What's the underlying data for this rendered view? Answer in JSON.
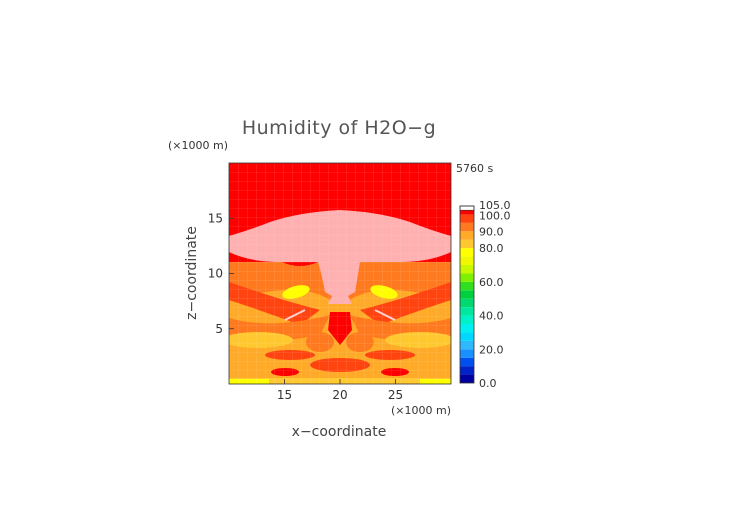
{
  "chart_data": {
    "type": "heatmap",
    "title": "Humidity of H2O−g",
    "xlabel": "x−coordinate",
    "ylabel": "z−coordinate",
    "x_unit": "(×1000 m)",
    "y_unit": "(×1000 m)",
    "time_label": "5760 s",
    "xlim": [
      10,
      30
    ],
    "ylim": [
      0,
      20
    ],
    "x_ticks": [
      15,
      20,
      25
    ],
    "y_ticks": [
      5,
      10,
      15
    ],
    "colorbar": {
      "ticks": [
        "0.0",
        "20.0",
        "40.0",
        "60.0",
        "80.0",
        "90.0",
        "100.0",
        "105.0"
      ],
      "levels": [
        {
          "low": 0,
          "high": 5,
          "color": "#0000a0"
        },
        {
          "low": 5,
          "high": 10,
          "color": "#0022c8"
        },
        {
          "low": 10,
          "high": 15,
          "color": "#0050f0"
        },
        {
          "low": 15,
          "high": 20,
          "color": "#1890ff"
        },
        {
          "low": 20,
          "high": 25,
          "color": "#30b8ff"
        },
        {
          "low": 25,
          "high": 30,
          "color": "#00d8ff"
        },
        {
          "low": 30,
          "high": 35,
          "color": "#00f0f0"
        },
        {
          "low": 35,
          "high": 40,
          "color": "#00f0c8"
        },
        {
          "low": 40,
          "high": 45,
          "color": "#00e8a0"
        },
        {
          "low": 45,
          "high": 50,
          "color": "#00d870"
        },
        {
          "low": 50,
          "high": 55,
          "color": "#00d040"
        },
        {
          "low": 55,
          "high": 60,
          "color": "#30e020"
        },
        {
          "low": 60,
          "high": 65,
          "color": "#80f000"
        },
        {
          "low": 65,
          "high": 70,
          "color": "#c8f800"
        },
        {
          "low": 70,
          "high": 75,
          "color": "#f0f800"
        },
        {
          "low": 75,
          "high": 80,
          "color": "#ffff00"
        },
        {
          "low": 80,
          "high": 85,
          "color": "#ffc830"
        },
        {
          "low": 85,
          "high": 90,
          "color": "#ffaa28"
        },
        {
          "low": 90,
          "high": 95,
          "color": "#ff7a1e"
        },
        {
          "low": 95,
          "high": 100,
          "color": "#ff4410"
        },
        {
          "low": 100,
          "high": 102.5,
          "color": "#ff0000"
        },
        {
          "low": 102.5,
          "high": 105,
          "color": "#ffb0b0"
        }
      ]
    },
    "grid": true
  }
}
